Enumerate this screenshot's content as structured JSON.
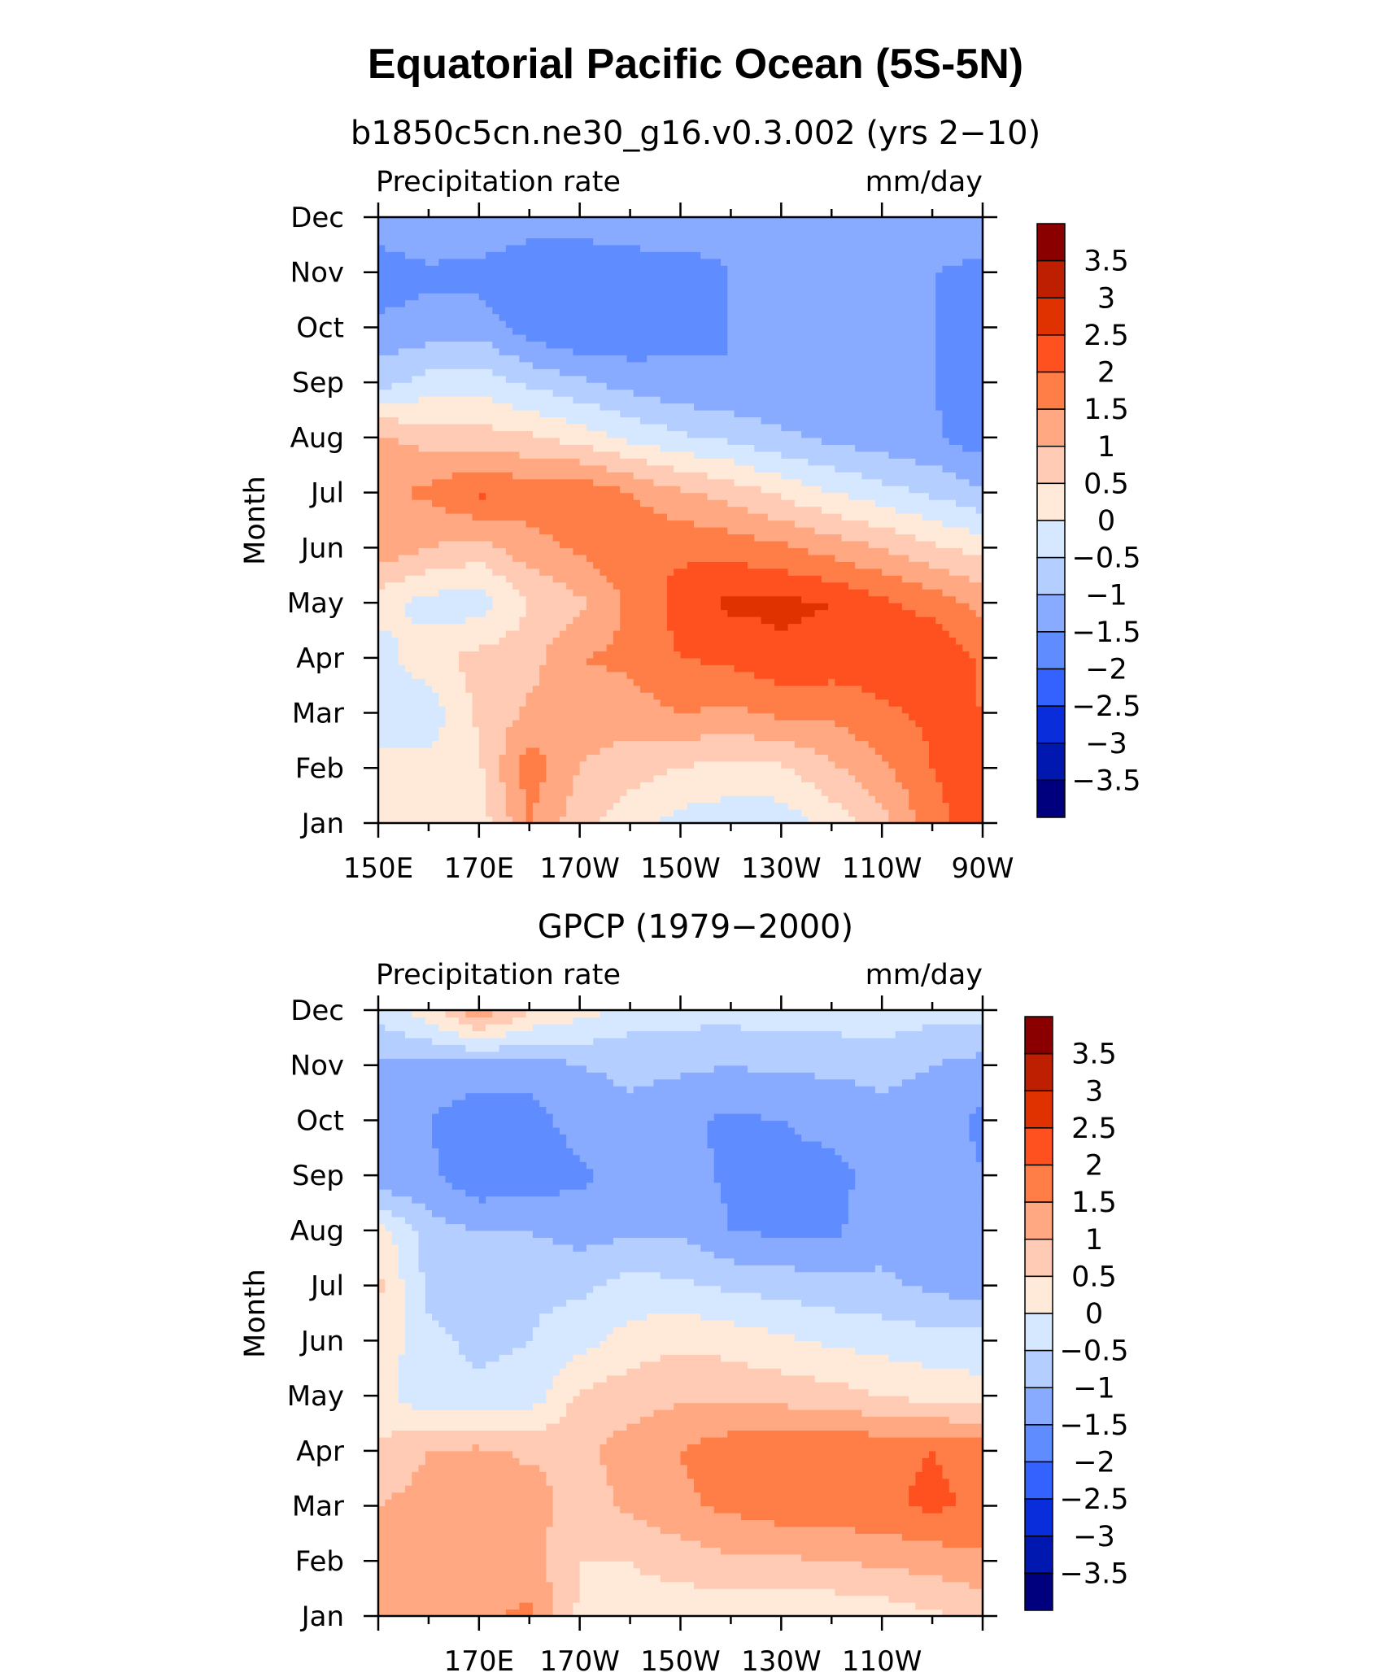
{
  "figure": {
    "title": "Equatorial Pacific Ocean (5S-5N)"
  },
  "colorbar": {
    "levels": [
      "3.5",
      "3",
      "2.5",
      "2",
      "1.5",
      "1",
      "0.5",
      "0",
      "−0.5",
      "−1",
      "−1.5",
      "−2",
      "−2.5",
      "−3",
      "−3.5"
    ],
    "colors": [
      "#8a0000",
      "#bd1f00",
      "#e03200",
      "#ff5020",
      "#ff7e48",
      "#ffa882",
      "#ffcbb4",
      "#ffe9d8",
      "#d6e8ff",
      "#b4cfff",
      "#88aaff",
      "#5f8cff",
      "#3462ff",
      "#0a2ddc",
      "#0018b0",
      "#00007e"
    ]
  },
  "chart_data": [
    {
      "type": "heatmap",
      "title": "b1850c5cn.ne30_g16.v0.3.002 (yrs 2−10)",
      "left_label": "Precipitation rate",
      "right_label": "mm/day",
      "ylabel": "Month",
      "x_range": [
        150,
        270
      ],
      "x_ticks": [
        "150E",
        "170E",
        "170W",
        "150W",
        "130W",
        "110W",
        "90W"
      ],
      "y_ticks": [
        "Jan",
        "Feb",
        "Mar",
        "Apr",
        "May",
        "Jun",
        "Jul",
        "Aug",
        "Sep",
        "Oct",
        "Nov",
        "Dec"
      ],
      "x_lon": [
        150,
        160,
        170,
        180,
        190,
        200,
        210,
        220,
        230,
        240,
        250,
        260,
        270
      ],
      "values": [
        [
          0.5,
          0.4,
          0.2,
          1.5,
          0.7,
          0.2,
          -0.2,
          -0.3,
          -0.3,
          0.2,
          0.8,
          1.8,
          2.3
        ],
        [
          0.3,
          0.2,
          0.4,
          1.8,
          1.0,
          0.7,
          0.5,
          0.3,
          0.4,
          0.9,
          1.4,
          2.0,
          2.4
        ],
        [
          -0.5,
          -0.3,
          0.6,
          1.1,
          1.2,
          1.3,
          1.5,
          1.4,
          1.6,
          1.6,
          1.9,
          2.1,
          2.0
        ],
        [
          -0.2,
          0.3,
          0.7,
          0.8,
          1.5,
          1.6,
          2.0,
          2.1,
          2.4,
          2.3,
          2.3,
          2.5,
          1.9
        ],
        [
          0.2,
          -0.2,
          -0.3,
          0.5,
          0.9,
          1.6,
          2.2,
          2.6,
          2.6,
          2.5,
          2.1,
          1.8,
          1.3
        ],
        [
          1.4,
          1.0,
          0.8,
          1.3,
          1.6,
          1.9,
          1.9,
          1.8,
          1.6,
          1.3,
          1.0,
          0.6,
          0.3
        ],
        [
          1.4,
          1.6,
          2.1,
          1.8,
          1.9,
          1.5,
          1.1,
          0.8,
          0.4,
          0.0,
          -0.3,
          -0.6,
          -0.9
        ],
        [
          1.1,
          0.8,
          0.7,
          0.6,
          0.3,
          -0.1,
          -0.4,
          -0.6,
          -0.9,
          -1.1,
          -1.3,
          -1.4,
          -1.8
        ],
        [
          -0.7,
          -0.3,
          -0.2,
          -0.6,
          -0.9,
          -1.2,
          -1.4,
          -1.5,
          -1.5,
          -1.5,
          -1.5,
          -1.5,
          -1.8
        ],
        [
          -1.4,
          -1.3,
          -1.2,
          -1.8,
          -2.0,
          -1.9,
          -1.6,
          -1.5,
          -1.5,
          -1.5,
          -1.5,
          -1.5,
          -1.8
        ],
        [
          -1.8,
          -1.6,
          -1.7,
          -1.9,
          -2.0,
          -1.9,
          -1.7,
          -1.5,
          -1.5,
          -1.5,
          -1.5,
          -1.5,
          -1.7
        ],
        [
          -1.2,
          -1.0,
          -1.0,
          -1.2,
          -1.2,
          -1.0,
          -1.2,
          -1.3,
          -1.3,
          -1.2,
          -1.0,
          -1.0,
          -1.0
        ]
      ]
    },
    {
      "type": "heatmap",
      "title": "GPCP (1979−2000)",
      "left_label": "Precipitation rate",
      "right_label": "mm/day",
      "ylabel": "Month",
      "x_range": [
        150,
        270
      ],
      "x_ticks": [
        "",
        "170E",
        "170W",
        "150W",
        "130W",
        "110W",
        ""
      ],
      "y_ticks": [
        "Jan",
        "Feb",
        "Mar",
        "Apr",
        "May",
        "Jun",
        "Jul",
        "Aug",
        "Sep",
        "Oct",
        "Nov",
        "Dec"
      ],
      "x_lon": [
        150,
        160,
        170,
        180,
        190,
        200,
        210,
        220,
        230,
        240,
        250,
        260,
        270
      ],
      "values": [
        [
          1.1,
          1.2,
          1.4,
          1.6,
          0.4,
          0.3,
          0.2,
          0.1,
          0.0,
          0.1,
          0.2,
          0.4,
          0.6
        ],
        [
          1.4,
          1.3,
          1.5,
          1.2,
          0.5,
          0.5,
          0.7,
          0.9,
          0.9,
          1.0,
          1.1,
          1.2,
          1.4
        ],
        [
          1.0,
          1.2,
          1.3,
          1.3,
          0.7,
          1.1,
          1.4,
          1.6,
          1.8,
          1.8,
          1.9,
          2.1,
          1.9
        ],
        [
          0.6,
          1.0,
          1.1,
          0.9,
          0.9,
          1.2,
          1.5,
          1.8,
          1.9,
          2.0,
          1.9,
          2.0,
          1.8
        ],
        [
          0.2,
          -0.4,
          -0.4,
          -0.3,
          0.6,
          0.8,
          0.9,
          0.9,
          0.8,
          0.7,
          0.5,
          0.3,
          0.2
        ],
        [
          0.4,
          -0.4,
          -0.6,
          -0.5,
          -0.2,
          0.2,
          0.4,
          0.3,
          0.1,
          -0.1,
          -0.2,
          -0.3,
          -0.3
        ],
        [
          0.6,
          -0.6,
          -0.7,
          -0.6,
          -0.6,
          -0.3,
          -0.4,
          -0.6,
          -0.7,
          -0.8,
          -0.9,
          -1.1,
          -1.3
        ],
        [
          0.3,
          -0.8,
          -1.0,
          -1.0,
          -1.2,
          -1.1,
          -1.1,
          -1.5,
          -1.6,
          -1.6,
          -1.2,
          -1.2,
          -1.5
        ],
        [
          -1.5,
          -1.4,
          -1.9,
          -1.8,
          -1.6,
          -1.3,
          -1.3,
          -1.6,
          -1.6,
          -1.6,
          -1.4,
          -1.2,
          -1.5
        ],
        [
          -1.4,
          -1.5,
          -1.8,
          -1.7,
          -1.3,
          -1.1,
          -1.4,
          -1.6,
          -1.5,
          -1.4,
          -1.2,
          -1.3,
          -1.6
        ],
        [
          -1.1,
          -1.2,
          -1.2,
          -1.3,
          -1.0,
          -0.9,
          -0.9,
          -1.0,
          -0.9,
          -0.9,
          -0.8,
          -1.0,
          -1.2
        ],
        [
          -0.3,
          0.3,
          1.4,
          0.6,
          0.2,
          -0.2,
          -0.3,
          -0.3,
          -0.2,
          -0.2,
          -0.2,
          -0.3,
          -0.3
        ]
      ]
    }
  ]
}
